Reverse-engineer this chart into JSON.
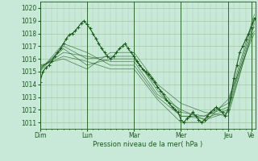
{
  "bg_color": "#c8e8d8",
  "plot_bg_color": "#c8e8d8",
  "line_color": "#1a5c1a",
  "grid_color": "#aaccaa",
  "ylabel_ticks": [
    1011,
    1012,
    1013,
    1014,
    1015,
    1016,
    1017,
    1018,
    1019,
    1020
  ],
  "ylim": [
    1010.5,
    1020.5
  ],
  "xlabel": "Pression niveau de la mer( hPa )",
  "xtick_labels": [
    "Dim",
    "Lun",
    "Mar",
    "Mer",
    "Jeu",
    "Ve"
  ],
  "xtick_positions": [
    0,
    48,
    96,
    144,
    192,
    216
  ],
  "total_hours": 220,
  "main_series": [
    [
      0,
      1014.2
    ],
    [
      3,
      1015.0
    ],
    [
      6,
      1015.3
    ],
    [
      9,
      1015.5
    ],
    [
      12,
      1015.8
    ],
    [
      15,
      1016.2
    ],
    [
      18,
      1016.5
    ],
    [
      21,
      1016.8
    ],
    [
      24,
      1017.2
    ],
    [
      27,
      1017.6
    ],
    [
      30,
      1017.9
    ],
    [
      33,
      1018.0
    ],
    [
      36,
      1018.2
    ],
    [
      39,
      1018.5
    ],
    [
      42,
      1018.8
    ],
    [
      45,
      1019.0
    ],
    [
      48,
      1018.7
    ],
    [
      51,
      1018.4
    ],
    [
      54,
      1018.0
    ],
    [
      57,
      1017.6
    ],
    [
      60,
      1017.2
    ],
    [
      63,
      1016.8
    ],
    [
      66,
      1016.5
    ],
    [
      69,
      1016.2
    ],
    [
      72,
      1016.0
    ],
    [
      75,
      1016.2
    ],
    [
      78,
      1016.5
    ],
    [
      81,
      1016.8
    ],
    [
      84,
      1017.0
    ],
    [
      87,
      1017.2
    ],
    [
      90,
      1016.8
    ],
    [
      93,
      1016.5
    ],
    [
      96,
      1016.2
    ],
    [
      99,
      1015.8
    ],
    [
      102,
      1015.5
    ],
    [
      105,
      1015.2
    ],
    [
      108,
      1015.0
    ],
    [
      111,
      1014.8
    ],
    [
      114,
      1014.5
    ],
    [
      117,
      1014.2
    ],
    [
      120,
      1013.8
    ],
    [
      123,
      1013.5
    ],
    [
      126,
      1013.2
    ],
    [
      129,
      1012.8
    ],
    [
      132,
      1012.5
    ],
    [
      135,
      1012.2
    ],
    [
      138,
      1012.0
    ],
    [
      141,
      1011.8
    ],
    [
      144,
      1011.2
    ],
    [
      147,
      1011.0
    ],
    [
      150,
      1011.3
    ],
    [
      153,
      1011.5
    ],
    [
      156,
      1011.8
    ],
    [
      159,
      1011.5
    ],
    [
      162,
      1011.2
    ],
    [
      165,
      1011.0
    ],
    [
      168,
      1011.2
    ],
    [
      171,
      1011.5
    ],
    [
      174,
      1011.8
    ],
    [
      177,
      1012.0
    ],
    [
      180,
      1012.2
    ],
    [
      183,
      1012.0
    ],
    [
      186,
      1011.8
    ],
    [
      189,
      1011.5
    ],
    [
      192,
      1012.0
    ],
    [
      195,
      1013.0
    ],
    [
      198,
      1014.5
    ],
    [
      201,
      1015.5
    ],
    [
      204,
      1016.5
    ],
    [
      207,
      1017.0
    ],
    [
      210,
      1017.5
    ],
    [
      213,
      1018.0
    ],
    [
      216,
      1018.5
    ],
    [
      219,
      1019.2
    ]
  ],
  "ensemble_lines": [
    [
      [
        0,
        1015.2
      ],
      [
        24,
        1016.8
      ],
      [
        48,
        1015.5
      ],
      [
        72,
        1016.0
      ],
      [
        96,
        1016.0
      ],
      [
        120,
        1013.8
      ],
      [
        144,
        1011.8
      ],
      [
        168,
        1011.5
      ],
      [
        192,
        1012.2
      ],
      [
        216,
        1018.5
      ],
      [
        219,
        1019.0
      ]
    ],
    [
      [
        0,
        1015.0
      ],
      [
        24,
        1017.0
      ],
      [
        48,
        1016.0
      ],
      [
        72,
        1016.2
      ],
      [
        96,
        1016.2
      ],
      [
        120,
        1013.5
      ],
      [
        144,
        1011.5
      ],
      [
        168,
        1011.3
      ],
      [
        192,
        1012.0
      ],
      [
        216,
        1018.2
      ],
      [
        219,
        1018.5
      ]
    ],
    [
      [
        0,
        1015.3
      ],
      [
        24,
        1016.5
      ],
      [
        48,
        1016.2
      ],
      [
        72,
        1015.8
      ],
      [
        96,
        1015.8
      ],
      [
        120,
        1013.2
      ],
      [
        144,
        1012.0
      ],
      [
        168,
        1011.2
      ],
      [
        192,
        1011.8
      ],
      [
        216,
        1017.8
      ],
      [
        219,
        1018.2
      ]
    ],
    [
      [
        0,
        1015.1
      ],
      [
        24,
        1017.2
      ],
      [
        48,
        1016.5
      ],
      [
        72,
        1015.5
      ],
      [
        96,
        1015.5
      ],
      [
        120,
        1013.0
      ],
      [
        144,
        1011.5
      ],
      [
        168,
        1011.5
      ],
      [
        192,
        1012.5
      ],
      [
        216,
        1018.8
      ],
      [
        219,
        1019.5
      ]
    ],
    [
      [
        0,
        1015.4
      ],
      [
        24,
        1016.2
      ],
      [
        48,
        1015.8
      ],
      [
        72,
        1015.2
      ],
      [
        96,
        1015.2
      ],
      [
        120,
        1012.8
      ],
      [
        144,
        1011.0
      ],
      [
        168,
        1011.0
      ],
      [
        192,
        1012.8
      ],
      [
        216,
        1017.5
      ],
      [
        219,
        1018.0
      ]
    ],
    [
      [
        0,
        1015.5
      ],
      [
        24,
        1016.0
      ],
      [
        48,
        1015.2
      ],
      [
        72,
        1016.5
      ],
      [
        96,
        1016.5
      ],
      [
        120,
        1014.0
      ],
      [
        144,
        1012.5
      ],
      [
        168,
        1011.8
      ],
      [
        192,
        1011.5
      ],
      [
        216,
        1018.0
      ],
      [
        219,
        1018.8
      ]
    ]
  ]
}
